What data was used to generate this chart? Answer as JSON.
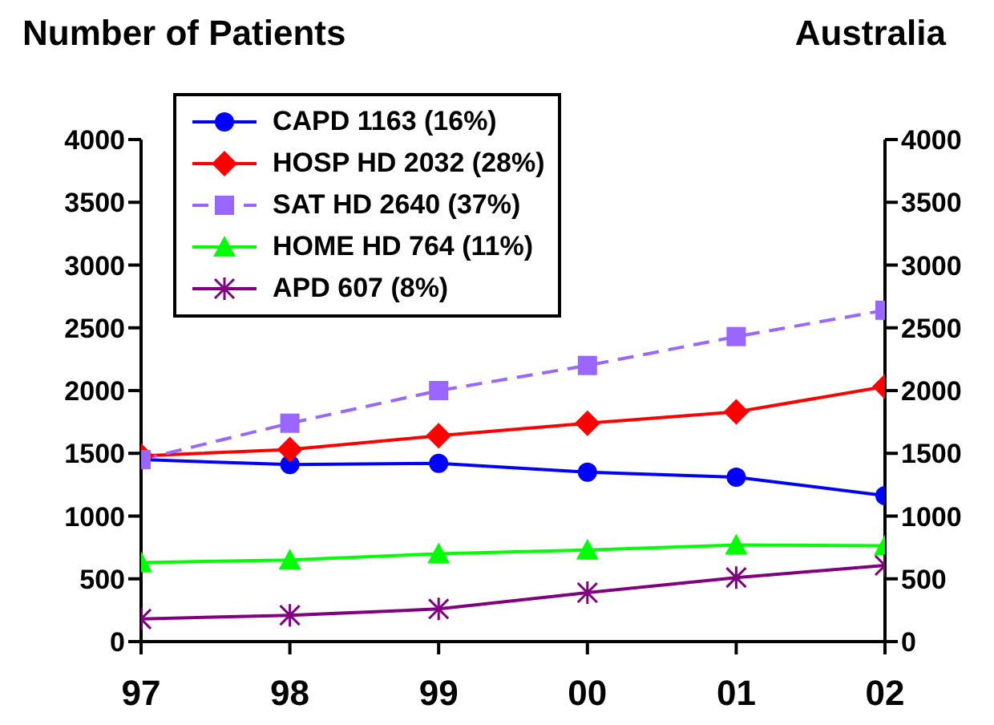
{
  "chart_data": {
    "type": "line",
    "title": "Number of Patients",
    "subtitle": "Australia",
    "categories": [
      "97",
      "98",
      "99",
      "00",
      "01",
      "02"
    ],
    "series": [
      {
        "name": "CAPD 1163 (16%)",
        "color": "#0000ff",
        "marker": "circle",
        "line_style": "solid",
        "values": [
          1450,
          1410,
          1420,
          1350,
          1310,
          1163
        ]
      },
      {
        "name": "HOSP HD 2032 (28%)",
        "color": "#ff0000",
        "marker": "diamond",
        "line_style": "solid",
        "values": [
          1480,
          1530,
          1640,
          1740,
          1830,
          2032
        ]
      },
      {
        "name": "SAT HD 2640 (37%)",
        "color": "#9966ff",
        "marker": "square",
        "line_style": "dashed",
        "values": [
          1450,
          1740,
          2000,
          2200,
          2430,
          2640
        ]
      },
      {
        "name": "HOME HD 764 (11%)",
        "color": "#00ff00",
        "marker": "triangle",
        "line_style": "solid",
        "values": [
          630,
          650,
          700,
          730,
          770,
          764
        ]
      },
      {
        "name": "APD 607 (8%)",
        "color": "#800080",
        "marker": "cross",
        "line_style": "solid",
        "values": [
          180,
          210,
          260,
          390,
          510,
          607
        ]
      }
    ],
    "ylim": [
      0,
      4000
    ],
    "yticks": [
      0,
      500,
      1000,
      1500,
      2000,
      2500,
      3000,
      3500,
      4000
    ],
    "y2lim": [
      0,
      4000
    ],
    "y2ticks": [
      0,
      500,
      1000,
      1500,
      2000,
      2500,
      3000,
      3500,
      4000
    ],
    "grid": false,
    "legend": "top left"
  }
}
